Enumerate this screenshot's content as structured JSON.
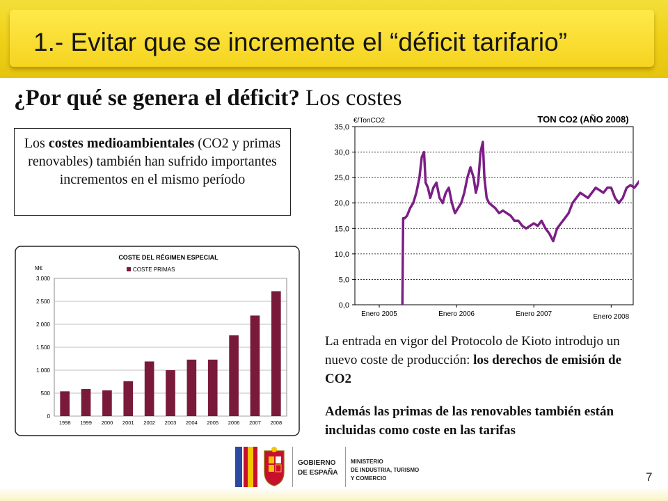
{
  "slide": {
    "title": "1.- Evitar que se incremente el “déficit tarifario”",
    "subtitle_bold": "¿Por qué se genera el déficit?",
    "subtitle_rest": " Los costes",
    "note": {
      "part1": "Los ",
      "part2_bold": "costes medioambientales",
      "part3": " (CO2 y primas renovables) también han sufrido importantes incrementos en el mismo período"
    },
    "text1_a": "La entrada en vigor del Protocolo de Kioto introdujo un nuevo coste de producción: ",
    "text1_b_bold": "los derechos de emisión de CO2",
    "text2": "Además las primas de las renovables también están incluidas como coste en las tarifas",
    "page_number": "7",
    "logo": {
      "gobierno": "GOBIERNO",
      "espana": "DE ESPAÑA",
      "ministerio1": "MINISTERIO",
      "ministerio2": "DE INDUSTRIA, TURISMO",
      "ministerio3": "Y COMERCIO"
    }
  },
  "chart_data": [
    {
      "type": "bar",
      "title": "COSTE DEL RÉGIMEN ESPECIAL",
      "ylabel": "M€",
      "categories": [
        "1998",
        "1999",
        "2000",
        "2001",
        "2002",
        "2003",
        "2004",
        "2005",
        "2006",
        "2007",
        "2008"
      ],
      "series": [
        {
          "name": "COSTE PRIMAS",
          "values": [
            540,
            590,
            560,
            760,
            1190,
            1000,
            1230,
            1230,
            1760,
            2190,
            2720
          ],
          "color": "#7a1a3a"
        }
      ],
      "ylim": [
        0,
        3000
      ],
      "yticks": [
        0,
        500,
        1000,
        1500,
        2000,
        2500,
        3000
      ],
      "ytick_labels": [
        "0",
        "500",
        "1.000",
        "1.500",
        "2.000",
        "2.500",
        "3.000"
      ],
      "grid": true,
      "legend": "top"
    },
    {
      "type": "line",
      "title": "TON CO2 (AÑO 2008)",
      "ylabel": "€/TonCO2",
      "ylim": [
        0,
        35
      ],
      "yticks": [
        0,
        5,
        10,
        15,
        20,
        25,
        30,
        35
      ],
      "ytick_labels": [
        "0,0",
        "5,0",
        "10,0",
        "15,0",
        "20,0",
        "25,0",
        "30,0",
        "35,0"
      ],
      "xlim": [
        0,
        3.6
      ],
      "xticks": [
        0,
        1,
        2,
        3
      ],
      "xtick_labels": [
        "Enero 2005",
        "Enero 2006",
        "Enero 2007",
        "Enero 2008"
      ],
      "color": "#7b1f86",
      "grid": true,
      "series": [
        {
          "x": [
            0.0,
            0.3,
            0.31,
            0.33,
            0.36,
            0.4,
            0.44,
            0.48,
            0.52,
            0.55,
            0.58,
            0.6,
            0.63,
            0.66,
            0.7,
            0.74,
            0.78,
            0.82,
            0.86,
            0.9,
            0.94,
            0.98,
            1.02,
            1.06,
            1.1,
            1.14,
            1.18,
            1.22,
            1.25,
            1.28,
            1.31,
            1.34,
            1.36,
            1.39,
            1.42,
            1.46,
            1.5,
            1.55,
            1.6,
            1.65,
            1.7,
            1.75,
            1.8,
            1.85,
            1.9,
            1.95,
            2.0,
            2.05,
            2.1,
            2.15,
            2.2,
            2.25,
            2.3,
            2.35,
            2.4,
            2.45,
            2.5,
            2.55,
            2.6,
            2.65,
            2.7,
            2.75,
            2.8,
            2.85,
            2.9,
            2.95,
            3.0,
            3.05,
            3.1,
            3.15,
            3.2,
            3.25,
            3.3,
            3.35,
            3.4,
            3.45,
            3.5
          ],
          "y": [
            null,
            0,
            17,
            17,
            17.5,
            19,
            20,
            22,
            25,
            29,
            30,
            24,
            23,
            21,
            23,
            24,
            21,
            20,
            22,
            23,
            20,
            18,
            19,
            20,
            22,
            25,
            27,
            25,
            22,
            24,
            30,
            32,
            25,
            21,
            20,
            19.5,
            19,
            18,
            18.5,
            18,
            17.5,
            16.5,
            16.5,
            15.5,
            15,
            15.5,
            16,
            15.5,
            16.5,
            15,
            14,
            12.5,
            15,
            16,
            17,
            18,
            20,
            21,
            22,
            21.5,
            21,
            22,
            23,
            22.5,
            22,
            23,
            23,
            21,
            20,
            21,
            23,
            23.5,
            23,
            24,
            25,
            25.3,
            25.5
          ]
        }
      ]
    }
  ]
}
